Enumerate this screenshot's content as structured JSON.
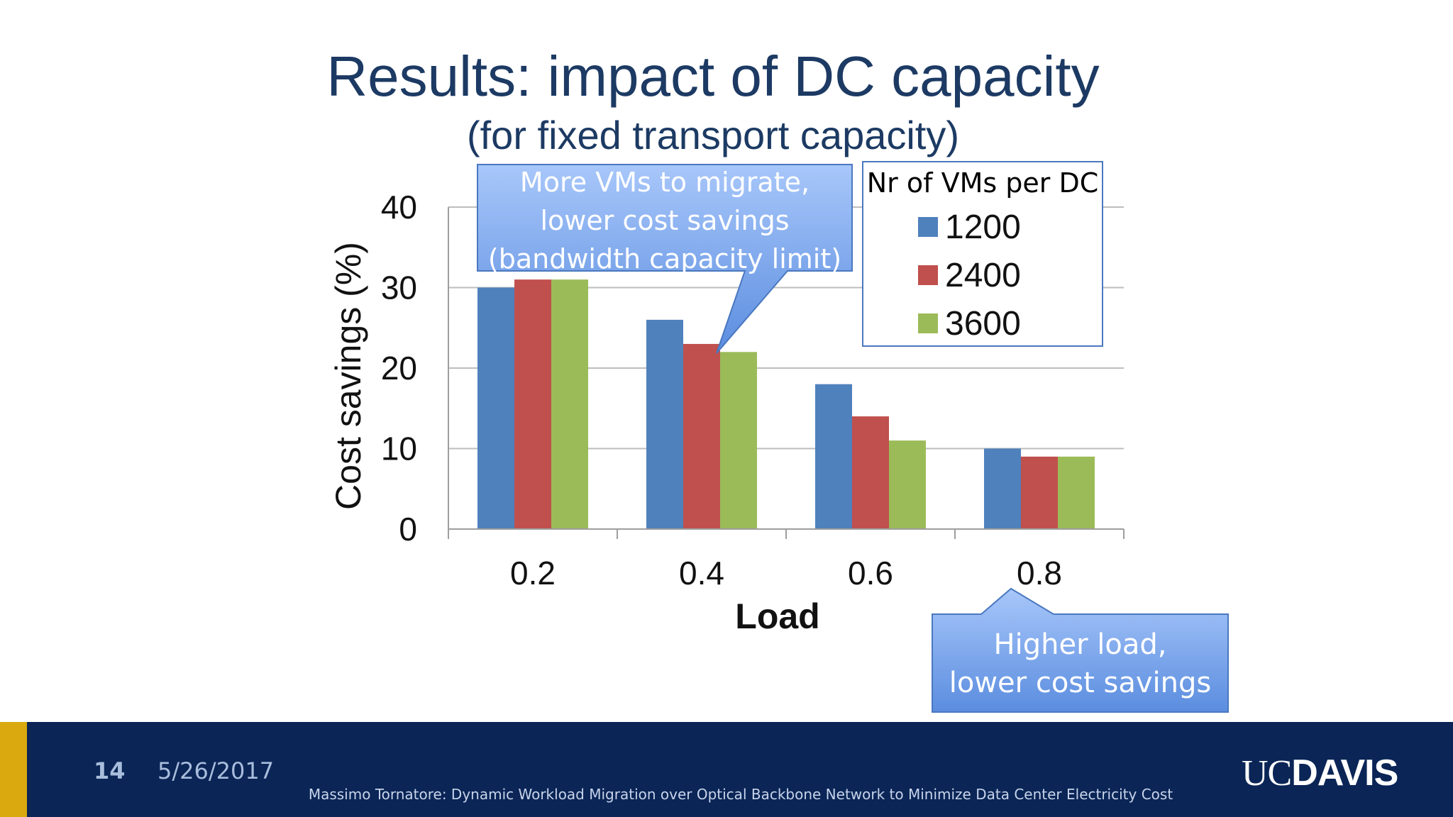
{
  "slide": {
    "title": "Results: impact of DC capacity",
    "subtitle": "(for fixed transport capacity)",
    "page_number": "14",
    "date": "5/26/2017",
    "footer_caption": "Massimo Tornatore: Dynamic Workload Migration over Optical Backbone Network to Minimize Data Center Electricity Cost",
    "logo_uc": "UC",
    "logo_davis": "DAVIS"
  },
  "callouts": {
    "vms": [
      "More VMs to migrate,",
      "lower cost savings",
      "(bandwidth capacity limit)"
    ],
    "load": [
      "Higher load,",
      "lower cost savings"
    ]
  },
  "chart_data": {
    "type": "bar",
    "categories": [
      "0.2",
      "0.4",
      "0.6",
      "0.8"
    ],
    "series": [
      {
        "name": "1200",
        "values": [
          30,
          26,
          18,
          10
        ],
        "color": "#4f81bd"
      },
      {
        "name": "2400",
        "values": [
          31,
          23,
          14,
          9
        ],
        "color": "#c0504d"
      },
      {
        "name": "3600",
        "values": [
          31,
          22,
          11,
          9
        ],
        "color": "#9bbb59"
      }
    ],
    "xlabel": "Load",
    "ylabel": "Cost savings (%)",
    "ylim": [
      0,
      40
    ],
    "yticks": [
      "0",
      "10",
      "20",
      "30",
      "40"
    ],
    "legend_title": "Nr of VMs per DC",
    "legend_position": "top-right",
    "grid": true
  },
  "colors": {
    "title": "#1c3a63",
    "callout_fill": "#6d9ae6",
    "footer_bg": "#0a2556",
    "footer_accent": "#d9a90f"
  }
}
